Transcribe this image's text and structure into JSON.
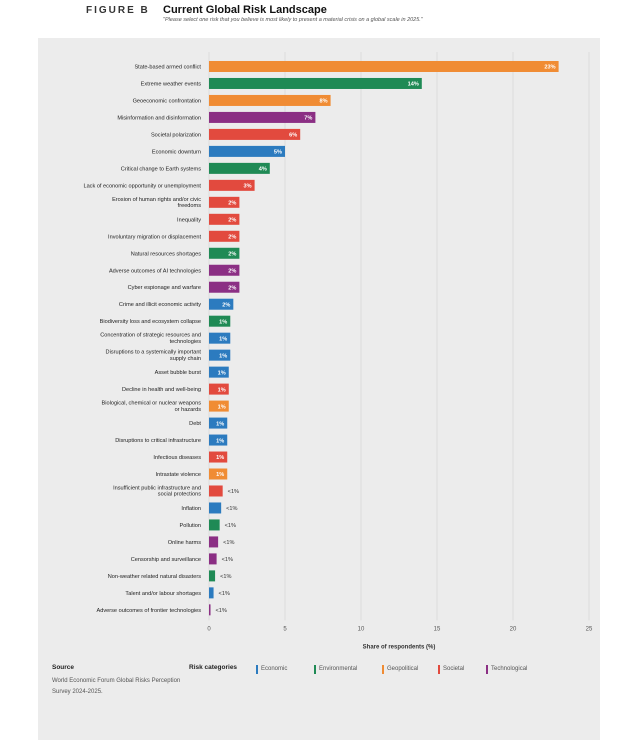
{
  "header": {
    "figure_label": "FIGURE B",
    "title": "Current Global Risk Landscape",
    "subtitle": "\"Please select one risk that you believe is most likely to present a material crisis on a global scale in 2025.\""
  },
  "footer": {
    "source_heading": "Source",
    "source_text": "World Economic Forum Global Risks Perception Survey 2024-2025.",
    "categories_heading": "Risk categories",
    "legend": [
      {
        "name": "Economic",
        "color": "#2c7bbf"
      },
      {
        "name": "Environmental",
        "color": "#1f8a55"
      },
      {
        "name": "Geopolitical",
        "color": "#f08c34"
      },
      {
        "name": "Societal",
        "color": "#e24a3e"
      },
      {
        "name": "Technological",
        "color": "#8b2f84"
      }
    ]
  },
  "chart_data": {
    "type": "bar",
    "orientation": "horizontal",
    "xlabel": "Share of respondents (%)",
    "xlim": [
      0,
      25
    ],
    "xticks": [
      0,
      5,
      10,
      15,
      20,
      25
    ],
    "grid": true,
    "colors": {
      "Economic": "#2c7bbf",
      "Environmental": "#1f8a55",
      "Geopolitical": "#f08c34",
      "Societal": "#e24a3e",
      "Technological": "#8b2f84"
    },
    "bars": [
      {
        "label": "State-based armed conflict",
        "value": 23,
        "display": "23%",
        "category": "Geopolitical"
      },
      {
        "label": "Extreme weather events",
        "value": 14,
        "display": "14%",
        "category": "Environmental"
      },
      {
        "label": "Geoeconomic confrontation",
        "value": 8,
        "display": "8%",
        "category": "Geopolitical"
      },
      {
        "label": "Misinformation and disinformation",
        "value": 7,
        "display": "7%",
        "category": "Technological"
      },
      {
        "label": "Societal polarization",
        "value": 6,
        "display": "6%",
        "category": "Societal"
      },
      {
        "label": "Economic downturn",
        "value": 5,
        "display": "5%",
        "category": "Economic"
      },
      {
        "label": "Critical change to Earth systems",
        "value": 4,
        "display": "4%",
        "category": "Environmental"
      },
      {
        "label": "Lack of economic opportunity or unemployment",
        "value": 3,
        "display": "3%",
        "category": "Societal"
      },
      {
        "label": "Erosion of human rights and/or civic freedoms",
        "value": 2,
        "display": "2%",
        "category": "Societal"
      },
      {
        "label": "Inequality",
        "value": 2,
        "display": "2%",
        "category": "Societal"
      },
      {
        "label": "Involuntary migration or displacement",
        "value": 2,
        "display": "2%",
        "category": "Societal"
      },
      {
        "label": "Natural resources shortages",
        "value": 2,
        "display": "2%",
        "category": "Environmental"
      },
      {
        "label": "Adverse outcomes of AI technologies",
        "value": 2,
        "display": "2%",
        "category": "Technological"
      },
      {
        "label": "Cyber espionage and warfare",
        "value": 2,
        "display": "2%",
        "category": "Technological"
      },
      {
        "label": "Crime and illicit economic activity",
        "value": 1.6,
        "display": "2%",
        "category": "Economic"
      },
      {
        "label": "Biodiversity loss and ecosystem collapse",
        "value": 1.4,
        "display": "1%",
        "category": "Environmental"
      },
      {
        "label": "Concentration of strategic resources and technologies",
        "value": 1.4,
        "display": "1%",
        "category": "Economic"
      },
      {
        "label": "Disruptions to a systemically important supply chain",
        "value": 1.4,
        "display": "1%",
        "category": "Economic"
      },
      {
        "label": "Asset bubble burst",
        "value": 1.3,
        "display": "1%",
        "category": "Economic"
      },
      {
        "label": "Decline in health and well-being",
        "value": 1.3,
        "display": "1%",
        "category": "Societal"
      },
      {
        "label": "Biological, chemical or nuclear weapons or hazards",
        "value": 1.3,
        "display": "1%",
        "category": "Geopolitical"
      },
      {
        "label": "Debt",
        "value": 1.2,
        "display": "1%",
        "category": "Economic"
      },
      {
        "label": "Disruptions to critical infrastructure",
        "value": 1.2,
        "display": "1%",
        "category": "Economic"
      },
      {
        "label": "Infectious diseases",
        "value": 1.2,
        "display": "1%",
        "category": "Societal"
      },
      {
        "label": "Intrastate violence",
        "value": 1.2,
        "display": "1%",
        "category": "Geopolitical"
      },
      {
        "label": "Insufficient public infrastructure and social protections",
        "value": 0.9,
        "display": "<1%",
        "category": "Societal"
      },
      {
        "label": "Inflation",
        "value": 0.8,
        "display": "<1%",
        "category": "Economic"
      },
      {
        "label": "Pollution",
        "value": 0.7,
        "display": "<1%",
        "category": "Environmental"
      },
      {
        "label": "Online harms",
        "value": 0.6,
        "display": "<1%",
        "category": "Technological"
      },
      {
        "label": "Censorship and surveillance",
        "value": 0.5,
        "display": "<1%",
        "category": "Technological"
      },
      {
        "label": "Non-weather related natural disasters",
        "value": 0.4,
        "display": "<1%",
        "category": "Environmental"
      },
      {
        "label": "Talent and/or labour shortages",
        "value": 0.3,
        "display": "<1%",
        "category": "Economic"
      },
      {
        "label": "Adverse outcomes of frontier technologies",
        "value": 0.1,
        "display": "<1%",
        "category": "Technological"
      }
    ]
  }
}
